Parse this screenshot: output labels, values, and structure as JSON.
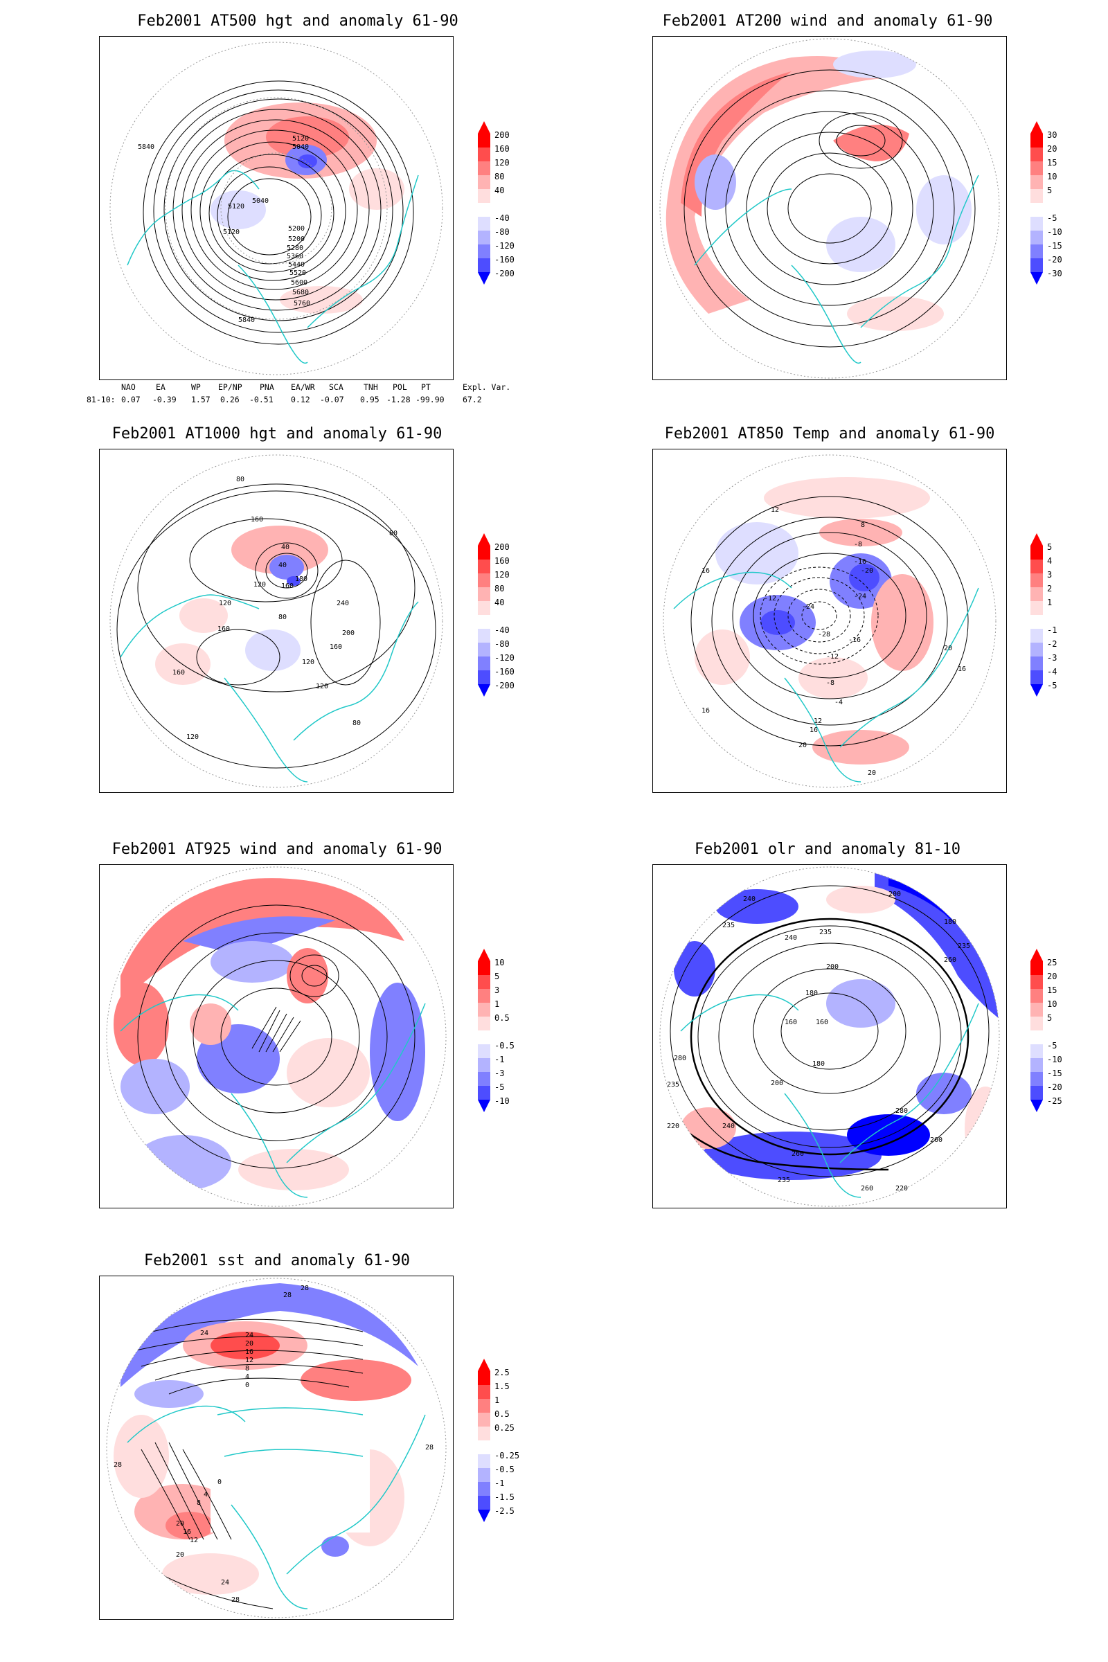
{
  "panels": [
    {
      "id": "z500",
      "title": "Feb2001 AT500 hgt and anomaly 61-90",
      "colorbar": [
        "200",
        "160",
        "120",
        "80",
        "40",
        "-40",
        "-80",
        "-120",
        "-160",
        "-200"
      ],
      "contour_labels": [
        "5840",
        "5120",
        "5040",
        "5120",
        "5200",
        "5200",
        "5280",
        "5360",
        "5440",
        "5520",
        "5600",
        "5680",
        "5760",
        "5840",
        "5120",
        "5040"
      ],
      "footer": {
        "headers": [
          "NAO",
          "EA",
          "WP",
          "EP/NP",
          "PNA",
          "EA/WR",
          "SCA",
          "TNH",
          "POL",
          "PT",
          "Expl. Var."
        ],
        "row_label": "81-10:",
        "values": [
          "0.07",
          "-0.39",
          "1.57",
          "0.26",
          "-0.51",
          "0.12",
          "-0.07",
          "0.95",
          "-1.28",
          "-99.90",
          "67.2"
        ]
      }
    },
    {
      "id": "u200",
      "title": "Feb2001 AT200 wind and anomaly 61-90",
      "colorbar": [
        "30",
        "20",
        "15",
        "10",
        "5",
        "-5",
        "-10",
        "-15",
        "-20",
        "-30"
      ]
    },
    {
      "id": "z1000",
      "title": "Feb2001 AT1000 hgt and anomaly 61-90",
      "colorbar": [
        "200",
        "160",
        "120",
        "80",
        "40",
        "-40",
        "-80",
        "-120",
        "-160",
        "-200"
      ],
      "contour_labels": [
        "80",
        "160",
        "40",
        "40",
        "180",
        "160",
        "120",
        "120",
        "80",
        "160",
        "240",
        "200",
        "160",
        "120",
        "160",
        "120",
        "80",
        "120",
        "80"
      ]
    },
    {
      "id": "t850",
      "title": "Feb2001 AT850 Temp and anomaly 61-90",
      "colorbar": [
        "5",
        "4",
        "3",
        "2",
        "1",
        "-1",
        "-2",
        "-3",
        "-4",
        "-5"
      ],
      "contour_labels": [
        "12",
        "8",
        "16",
        "-8",
        "-12",
        "-16",
        "-20",
        "-24",
        "-28",
        "-24",
        "-16",
        "-12",
        "-8",
        "-4",
        "12",
        "16",
        "20",
        "20",
        "16",
        "16",
        "20"
      ]
    },
    {
      "id": "w925",
      "title": "Feb2001 AT925 wind and anomaly 61-90",
      "colorbar": [
        "10",
        "5",
        "3",
        "1",
        "0.5",
        "-0.5",
        "-1",
        "-3",
        "-5",
        "-10"
      ]
    },
    {
      "id": "olr",
      "title": "Feb2001 olr and anomaly 81-10",
      "colorbar": [
        "25",
        "20",
        "15",
        "10",
        "5",
        "-5",
        "-10",
        "-15",
        "-20",
        "-25"
      ],
      "contour_labels": [
        "240",
        "235",
        "200",
        "180",
        "235",
        "260",
        "240",
        "235",
        "200",
        "180",
        "160",
        "160",
        "180",
        "200",
        "240",
        "260",
        "280",
        "235",
        "280",
        "260",
        "220",
        "235",
        "260",
        "220"
      ]
    },
    {
      "id": "sst",
      "title": "Feb2001 sst and anomaly 61-90",
      "colorbar": [
        "2.5",
        "1.5",
        "1",
        "0.5",
        "0.25",
        "-0.25",
        "-0.5",
        "-1",
        "-1.5",
        "-2.5"
      ],
      "contour_labels": [
        "28",
        "24",
        "24",
        "20",
        "16",
        "12",
        "8",
        "4",
        "0",
        "28",
        "20",
        "16",
        "12",
        "8",
        "4",
        "0",
        "20",
        "24",
        "28",
        "28",
        "28"
      ]
    }
  ],
  "palette": [
    "#ff0000",
    "#ff4d4d",
    "#ff8080",
    "#ffb3b3",
    "#ffdede",
    "#ffffff",
    "#dedeff",
    "#b3b3ff",
    "#8080ff",
    "#4d4dff",
    "#0000ff"
  ]
}
